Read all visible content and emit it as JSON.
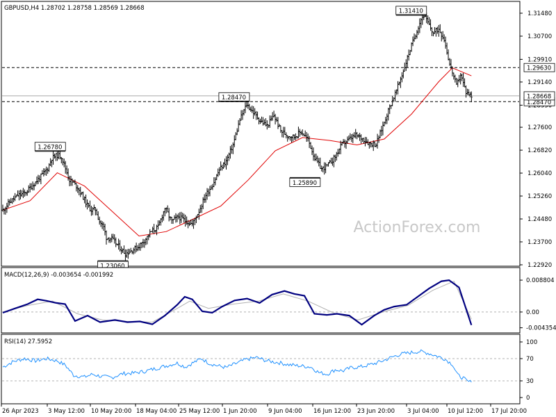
{
  "header": {
    "symbol_line": "GBPUSD,H4  1.28702 1.28758 1.28569 1.28668",
    "macd_label": "MACD(12,26,9) -0.003654 -0.001992",
    "rsi_label": "RSI(14) 27.5952"
  },
  "watermark": "ActionForex.com",
  "colors": {
    "price_bars": "#000000",
    "moving_average": "#e00000",
    "macd_line": "#000080",
    "macd_signal": "#b0b0b0",
    "rsi_line": "#1e90ff",
    "level_lines": "#000000",
    "watermark": "#c8c8c8"
  },
  "chart_data": [
    {
      "type": "candlestick",
      "panel": "price",
      "ylim": [
        1.2292,
        1.3148
      ],
      "y_ticks": [
        "1.31480",
        "1.30700",
        "1.29910",
        "1.29140",
        "1.28350",
        "1.27600",
        "1.26820",
        "1.26040",
        "1.25260",
        "1.24480",
        "1.23700",
        "1.22920"
      ],
      "x_ticks": [
        "26 Apr 2023",
        "3 May 12:00",
        "10 May 20:00",
        "18 May 04:00",
        "25 May 12:00",
        "1 Jun 20:00",
        "9 Jun 04:00",
        "16 Jun 12:00",
        "23 Jun 20:00",
        "3 Jul 04:00",
        "10 Jul 12:00",
        "17 Jul 20:00"
      ],
      "close_path": [
        [
          0,
          1.2478
        ],
        [
          5,
          1.2505
        ],
        [
          11,
          1.2528
        ],
        [
          16,
          1.2535
        ],
        [
          22,
          1.2563
        ],
        [
          28,
          1.2593
        ],
        [
          33,
          1.262
        ],
        [
          36,
          1.2655
        ],
        [
          40,
          1.2665
        ],
        [
          43,
          1.266
        ],
        [
          46,
          1.262
        ],
        [
          49,
          1.258
        ],
        [
          52,
          1.257
        ],
        [
          55,
          1.2555
        ],
        [
          59,
          1.2522
        ],
        [
          62,
          1.2495
        ],
        [
          65,
          1.2478
        ],
        [
          68,
          1.248
        ],
        [
          71,
          1.244
        ],
        [
          74,
          1.242
        ],
        [
          76,
          1.2385
        ],
        [
          80,
          1.238
        ],
        [
          85,
          1.2355
        ],
        [
          90,
          1.233
        ],
        [
          94,
          1.234
        ],
        [
          99,
          1.2352
        ],
        [
          104,
          1.2375
        ],
        [
          109,
          1.2405
        ],
        [
          114,
          1.242
        ],
        [
          119,
          1.2485
        ],
        [
          124,
          1.244
        ],
        [
          129,
          1.2455
        ],
        [
          134,
          1.2442
        ],
        [
          139,
          1.243
        ],
        [
          144,
          1.2475
        ],
        [
          149,
          1.253
        ],
        [
          154,
          1.2565
        ],
        [
          159,
          1.2615
        ],
        [
          164,
          1.2645
        ],
        [
          169,
          1.27
        ],
        [
          174,
          1.2785
        ],
        [
          179,
          1.2838
        ],
        [
          184,
          1.281
        ],
        [
          189,
          1.2782
        ],
        [
          194,
          1.2765
        ],
        [
          199,
          1.28
        ],
        [
          204,
          1.2748
        ],
        [
          209,
          1.2732
        ],
        [
          214,
          1.2728
        ],
        [
          219,
          1.2745
        ],
        [
          224,
          1.2718
        ],
        [
          229,
          1.2655
        ],
        [
          234,
          1.2618
        ],
        [
          239,
          1.2632
        ],
        [
          244,
          1.266
        ],
        [
          249,
          1.2702
        ],
        [
          254,
          1.2718
        ],
        [
          259,
          1.2732
        ],
        [
          264,
          1.2722
        ],
        [
          269,
          1.2705
        ],
        [
          274,
          1.2702
        ],
        [
          279,
          1.2765
        ],
        [
          284,
          1.283
        ],
        [
          289,
          1.2885
        ],
        [
          294,
          1.2952
        ],
        [
          299,
          1.3025
        ],
        [
          304,
          1.309
        ],
        [
          307,
          1.3128
        ],
        [
          309,
          1.3141
        ],
        [
          312,
          1.3115
        ],
        [
          316,
          1.308
        ],
        [
          320,
          1.3095
        ],
        [
          324,
          1.306
        ],
        [
          328,
          1.2975
        ],
        [
          330,
          1.2948
        ],
        [
          333,
          1.29
        ],
        [
          336,
          1.294
        ],
        [
          340,
          1.288
        ],
        [
          344,
          1.2867
        ]
      ],
      "labeled_levels": [
        {
          "label": "1.26780",
          "value": 1.2678
        },
        {
          "label": "1.23060",
          "value": 1.2306
        },
        {
          "label": "1.28470",
          "value": 1.2847
        },
        {
          "label": "1.25890",
          "value": 1.2589
        },
        {
          "label": "1.31410",
          "value": 1.3141
        }
      ],
      "horizontal_lines": [
        {
          "label": "1.29630",
          "value": 1.2963,
          "style": "dashed"
        },
        {
          "label": "1.28470",
          "value": 1.2847,
          "style": "dashed"
        },
        {
          "label": "1.28668",
          "value": 1.28668,
          "style": "solid-gray"
        }
      ],
      "moving_average": [
        [
          0,
          1.2478
        ],
        [
          20,
          1.251
        ],
        [
          40,
          1.2605
        ],
        [
          60,
          1.256
        ],
        [
          80,
          1.2475
        ],
        [
          100,
          1.239
        ],
        [
          120,
          1.2405
        ],
        [
          140,
          1.2448
        ],
        [
          160,
          1.2492
        ],
        [
          180,
          1.258
        ],
        [
          200,
          1.268
        ],
        [
          220,
          1.2725
        ],
        [
          240,
          1.2715
        ],
        [
          260,
          1.27
        ],
        [
          280,
          1.272
        ],
        [
          300,
          1.2805
        ],
        [
          320,
          1.2915
        ],
        [
          330,
          1.2962
        ],
        [
          344,
          1.2935
        ]
      ]
    },
    {
      "type": "line",
      "panel": "macd",
      "ylim": [
        -0.0052,
        0.0092
      ],
      "y_ticks": [
        "0.008804",
        "0.00",
        "-0.004354"
      ],
      "series": [
        {
          "name": "MACD(12,26,9)",
          "values": [
            [
              0,
              -0.0002
            ],
            [
              10,
              0.001
            ],
            [
              20,
              0.0022
            ],
            [
              28,
              0.0035
            ],
            [
              35,
              0.0031
            ],
            [
              43,
              0.0025
            ],
            [
              50,
              0.0022
            ],
            [
              58,
              -0.0025
            ],
            [
              68,
              -0.001
            ],
            [
              78,
              -0.0028
            ],
            [
              90,
              -0.0022
            ],
            [
              100,
              -0.0028
            ],
            [
              110,
              -0.0026
            ],
            [
              120,
              -0.0034
            ],
            [
              130,
              -0.001
            ],
            [
              140,
              0.002
            ],
            [
              146,
              0.0042
            ],
            [
              152,
              0.0035
            ],
            [
              160,
              0.0002
            ],
            [
              168,
              -0.0002
            ],
            [
              176,
              0.0015
            ],
            [
              186,
              0.0032
            ],
            [
              196,
              0.0037
            ],
            [
              206,
              0.0025
            ],
            [
              216,
              0.0048
            ],
            [
              226,
              0.0058
            ],
            [
              234,
              0.005
            ],
            [
              242,
              0.0045
            ],
            [
              250,
              -0.0005
            ],
            [
              260,
              -0.0008
            ],
            [
              268,
              -0.0005
            ],
            [
              278,
              -0.001
            ],
            [
              288,
              -0.0035
            ],
            [
              298,
              -0.001
            ],
            [
              306,
              0.0006
            ],
            [
              314,
              0.0015
            ],
            [
              324,
              0.002
            ],
            [
              334,
              0.0045
            ],
            [
              342,
              0.0065
            ],
            [
              352,
              0.0085
            ],
            [
              358,
              0.0088
            ],
            [
              366,
              0.0068
            ],
            [
              376,
              -0.0036
            ]
          ]
        },
        {
          "name": "Signal",
          "values": [
            [
              0,
              0.0
            ],
            [
              20,
              0.0018
            ],
            [
              40,
              0.003
            ],
            [
              60,
              -0.0005
            ],
            [
              80,
              -0.0022
            ],
            [
              100,
              -0.0026
            ],
            [
              120,
              -0.0028
            ],
            [
              140,
              0.001
            ],
            [
              150,
              0.003
            ],
            [
              165,
              0.001
            ],
            [
              185,
              0.0022
            ],
            [
              205,
              0.003
            ],
            [
              225,
              0.005
            ],
            [
              245,
              0.003
            ],
            [
              265,
              -0.0002
            ],
            [
              285,
              -0.0022
            ],
            [
              305,
              0.0
            ],
            [
              325,
              0.0018
            ],
            [
              345,
              0.006
            ],
            [
              362,
              0.0085
            ],
            [
              376,
              -0.002
            ]
          ]
        }
      ]
    },
    {
      "type": "line",
      "panel": "rsi",
      "ylim": [
        0,
        100
      ],
      "y_ticks": [
        "100",
        "70",
        "30",
        "0"
      ],
      "reference_lines": [
        70,
        30
      ],
      "series": [
        {
          "name": "RSI(14)",
          "values": [
            [
              0,
              55
            ],
            [
              8,
              65
            ],
            [
              16,
              70
            ],
            [
              24,
              66
            ],
            [
              32,
              70
            ],
            [
              40,
              66
            ],
            [
              46,
              58
            ],
            [
              52,
              40
            ],
            [
              60,
              37
            ],
            [
              66,
              42
            ],
            [
              72,
              38
            ],
            [
              80,
              36
            ],
            [
              88,
              43
            ],
            [
              96,
              44
            ],
            [
              104,
              47
            ],
            [
              112,
              52
            ],
            [
              120,
              57
            ],
            [
              128,
              62
            ],
            [
              134,
              55
            ],
            [
              140,
              63
            ],
            [
              146,
              70
            ],
            [
              152,
              61
            ],
            [
              158,
              57
            ],
            [
              164,
              54
            ],
            [
              170,
              60
            ],
            [
              178,
              68
            ],
            [
              186,
              72
            ],
            [
              194,
              66
            ],
            [
              202,
              63
            ],
            [
              210,
              59
            ],
            [
              218,
              57
            ],
            [
              226,
              55
            ],
            [
              232,
              45
            ],
            [
              238,
              42
            ],
            [
              244,
              50
            ],
            [
              250,
              48
            ],
            [
              256,
              54
            ],
            [
              262,
              55
            ],
            [
              268,
              58
            ],
            [
              274,
              62
            ],
            [
              280,
              67
            ],
            [
              286,
              73
            ],
            [
              292,
              78
            ],
            [
              300,
              81
            ],
            [
              306,
              83
            ],
            [
              312,
              80
            ],
            [
              318,
              75
            ],
            [
              324,
              70
            ],
            [
              330,
              60
            ],
            [
              334,
              40
            ],
            [
              338,
              35
            ],
            [
              341,
              29
            ],
            [
              344,
              27.6
            ]
          ]
        }
      ]
    }
  ]
}
